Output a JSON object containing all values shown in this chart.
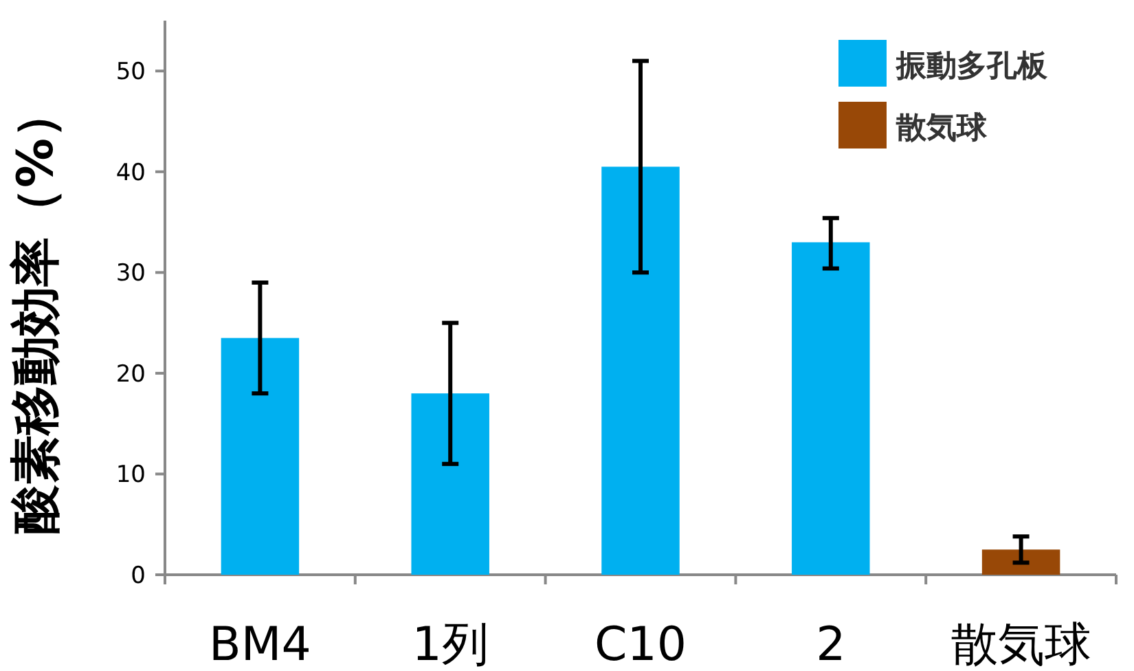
{
  "chart_data": {
    "type": "bar",
    "ylabel": "酸素移動効率（%）",
    "categories": [
      "BM4",
      "1列",
      "C10",
      "2",
      "散気球"
    ],
    "series": [
      {
        "name": "振動多孔板",
        "color": "#00b0f0",
        "values": [
          23.5,
          18,
          40.5,
          33,
          null
        ],
        "errors": [
          [
            18,
            29
          ],
          [
            11,
            25
          ],
          [
            30,
            51
          ],
          [
            30.4,
            35.4
          ],
          null
        ]
      },
      {
        "name": "散気球",
        "color": "#984807",
        "values": [
          null,
          null,
          null,
          null,
          2.5
        ],
        "errors": [
          null,
          null,
          null,
          null,
          [
            1.2,
            3.8
          ]
        ]
      }
    ],
    "ylim": [
      0,
      55
    ],
    "yticks": [
      0,
      10,
      20,
      30,
      40,
      50
    ],
    "legend": "top right"
  }
}
